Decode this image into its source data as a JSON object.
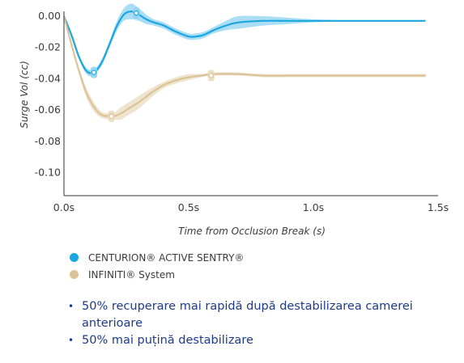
{
  "chart_data": {
    "type": "line",
    "title": "",
    "xlabel": "Time from Occlusion Break (s)",
    "ylabel": "Surge Vol (cc)",
    "xlim": [
      0,
      1.5
    ],
    "ylim": [
      -0.115,
      0.005
    ],
    "x_ticks": [
      "0.0s",
      "0.5s",
      "1.0s",
      "1.5s"
    ],
    "x_tick_values": [
      0,
      0.5,
      1.0,
      1.5
    ],
    "y_ticks": [
      "0.00",
      "-0.02",
      "-0.04",
      "-0.06",
      "-0.08",
      "-0.10"
    ],
    "y_tick_values": [
      0,
      -0.02,
      -0.04,
      -0.06,
      -0.08,
      -0.1
    ],
    "grid": false,
    "series": [
      {
        "name": "CENTURION® ACTIVE SENTRY®",
        "color": "#1aa7e0",
        "band_color": "#8fd3f2",
        "x": [
          0,
          0.03,
          0.06,
          0.09,
          0.12,
          0.15,
          0.18,
          0.21,
          0.24,
          0.27,
          0.3,
          0.33,
          0.36,
          0.4,
          0.45,
          0.5,
          0.53,
          0.56,
          0.6,
          0.65,
          0.7,
          0.8,
          0.9,
          1.0,
          1.2,
          1.45
        ],
        "y": [
          0.0,
          -0.012,
          -0.026,
          -0.035,
          -0.036,
          -0.03,
          -0.019,
          -0.007,
          0.001,
          0.003,
          0.001,
          -0.002,
          -0.004,
          -0.006,
          -0.01,
          -0.013,
          -0.013,
          -0.012,
          -0.009,
          -0.006,
          -0.004,
          -0.003,
          -0.003,
          -0.003,
          -0.003,
          -0.003
        ],
        "band": [
          0,
          0,
          0.001,
          0.002,
          0.002,
          0.002,
          0.002,
          0.003,
          0.004,
          0.005,
          0.004,
          0.003,
          0.002,
          0.002,
          0.002,
          0.002,
          0.002,
          0.002,
          0.002,
          0.003,
          0.004,
          0.003,
          0.002,
          0.001,
          0,
          0
        ]
      },
      {
        "name": "INFINITI® System",
        "color": "#dbc39a",
        "band_color": "#eadbbc",
        "x": [
          0,
          0.03,
          0.06,
          0.09,
          0.12,
          0.15,
          0.18,
          0.2,
          0.23,
          0.26,
          0.3,
          0.35,
          0.4,
          0.45,
          0.5,
          0.55,
          0.6,
          0.7,
          0.8,
          0.9,
          1.0,
          1.2,
          1.45
        ],
        "y": [
          0.0,
          -0.018,
          -0.035,
          -0.049,
          -0.058,
          -0.063,
          -0.064,
          -0.064,
          -0.062,
          -0.059,
          -0.055,
          -0.049,
          -0.044,
          -0.041,
          -0.039,
          -0.038,
          -0.037,
          -0.037,
          -0.038,
          -0.038,
          -0.038,
          -0.038,
          -0.038
        ],
        "band": [
          0,
          0.001,
          0.002,
          0.003,
          0.003,
          0.002,
          0.002,
          0.002,
          0.004,
          0.004,
          0.004,
          0.003,
          0.002,
          0.002,
          0.002,
          0.001,
          0.001,
          0.001,
          0.001,
          0.001,
          0.001,
          0.001,
          0.001
        ]
      }
    ],
    "markers": [
      {
        "series": 0,
        "x": 0.12,
        "y": -0.036
      },
      {
        "series": 0,
        "x": 0.29,
        "y": 0.002
      },
      {
        "series": 1,
        "x": 0.19,
        "y": -0.064
      },
      {
        "series": 1,
        "x": 0.59,
        "y": -0.038
      }
    ]
  },
  "legend": {
    "items": [
      {
        "label": "CENTURION® ACTIVE SENTRY®",
        "color": "#1aa7e0"
      },
      {
        "label": "INFINITI® System",
        "color": "#dbc39a"
      }
    ]
  },
  "bullets": [
    "50% recuperare mai rapidă după destabilizarea camerei anterioare",
    "50% mai puțină destabilizare"
  ]
}
